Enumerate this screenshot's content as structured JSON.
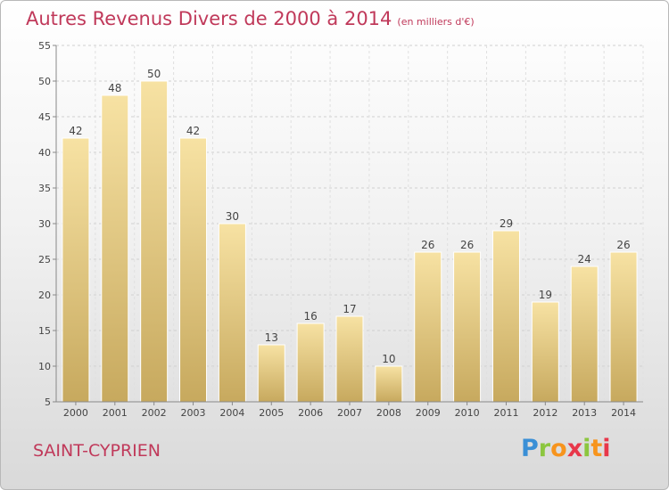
{
  "header": {
    "title": "Autres Revenus Divers de 2000 à 2014",
    "unit": "(en milliers d'€)"
  },
  "footer": {
    "place": "SAINT-CYPRIEN",
    "logo_letters": [
      "P",
      "r",
      "o",
      "x",
      "i",
      "t",
      "i"
    ]
  },
  "chart_data": {
    "type": "bar",
    "title": "Autres Revenus Divers de 2000 à 2014",
    "subtitle": "(en milliers d'€)",
    "categories": [
      "2000",
      "2001",
      "2002",
      "2003",
      "2004",
      "2005",
      "2006",
      "2007",
      "2008",
      "2009",
      "2010",
      "2011",
      "2012",
      "2013",
      "2014"
    ],
    "values": [
      42,
      48,
      50,
      42,
      30,
      13,
      16,
      17,
      10,
      26,
      26,
      29,
      19,
      24,
      26
    ],
    "ylim": [
      5,
      55
    ],
    "yticks": [
      5,
      10,
      15,
      20,
      25,
      30,
      35,
      40,
      45,
      50,
      55
    ],
    "grid": true,
    "bar_color": "#e8cf8a",
    "accent_color": "#c0395a"
  }
}
